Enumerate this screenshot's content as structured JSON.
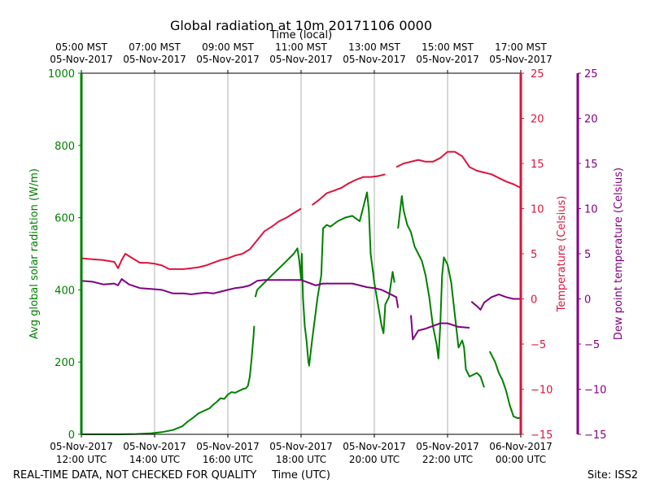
{
  "chart_data": {
    "type": "line",
    "title": "Global radiation at 10m 20171106 0000",
    "top_axis_label": "Time (local)",
    "xlabel": "Time (UTC)",
    "ylabel_left": "Avg global solar radiation (W/m)",
    "ylabel_right1": "Temperature (Celsius)",
    "ylabel_right2": "Dew point temperature (Celsius)",
    "footer_left": "REAL-TIME DATA, NOT CHECKED FOR QUALITY",
    "footer_right": "Site: ISS2",
    "xlim": [
      12,
      24
    ],
    "ylim_left": [
      0,
      1000
    ],
    "ylim_right": [
      -15,
      25
    ],
    "grid": "vertical",
    "bottom_ticks": [
      {
        "x": 12,
        "line1": "05-Nov-2017",
        "line2": "12:00 UTC"
      },
      {
        "x": 14,
        "line1": "05-Nov-2017",
        "line2": "14:00 UTC"
      },
      {
        "x": 16,
        "line1": "05-Nov-2017",
        "line2": "16:00 UTC"
      },
      {
        "x": 18,
        "line1": "05-Nov-2017",
        "line2": "18:00 UTC"
      },
      {
        "x": 20,
        "line1": "05-Nov-2017",
        "line2": "20:00 UTC"
      },
      {
        "x": 22,
        "line1": "05-Nov-2017",
        "line2": "22:00 UTC"
      },
      {
        "x": 24,
        "line1": "06-Nov-2017",
        "line2": "00:00 UTC"
      }
    ],
    "top_ticks": [
      {
        "x": 12,
        "line1": "05:00 MST",
        "line2": "05-Nov-2017"
      },
      {
        "x": 14,
        "line1": "07:00 MST",
        "line2": "05-Nov-2017"
      },
      {
        "x": 16,
        "line1": "09:00 MST",
        "line2": "05-Nov-2017"
      },
      {
        "x": 18,
        "line1": "11:00 MST",
        "line2": "05-Nov-2017"
      },
      {
        "x": 20,
        "line1": "13:00 MST",
        "line2": "05-Nov-2017"
      },
      {
        "x": 22,
        "line1": "15:00 MST",
        "line2": "05-Nov-2017"
      },
      {
        "x": 24,
        "line1": "17:00 MST",
        "line2": "05-Nov-2017"
      }
    ],
    "left_ticks": [
      0,
      200,
      400,
      600,
      800,
      1000
    ],
    "right_ticks": [
      -15,
      -10,
      -5,
      0,
      5,
      10,
      15,
      20,
      25
    ],
    "right_tick_labels": [
      "−15",
      "−10",
      "−5",
      "0",
      "5",
      "10",
      "15",
      "20",
      "25"
    ],
    "colors": {
      "radiation": "#008000",
      "temperature": "#dc143c",
      "dewpoint": "#800080",
      "axis": "#000000",
      "grid": "#b0b0b0"
    },
    "series": [
      {
        "name": "Avg global solar radiation",
        "axis": "left",
        "color": "#008000",
        "segments": [
          [
            [
              12.0,
              0
            ],
            [
              13.0,
              0
            ],
            [
              13.5,
              1
            ],
            [
              13.9,
              3
            ],
            [
              14.2,
              6
            ],
            [
              14.5,
              12
            ],
            [
              14.75,
              22
            ],
            [
              14.9,
              35
            ],
            [
              15.05,
              46
            ],
            [
              15.2,
              58
            ],
            [
              15.35,
              65
            ],
            [
              15.5,
              72
            ],
            [
              15.6,
              82
            ],
            [
              15.7,
              90
            ],
            [
              15.8,
              100
            ],
            [
              15.9,
              98
            ],
            [
              16.0,
              110
            ],
            [
              16.1,
              117
            ],
            [
              16.2,
              115
            ],
            [
              16.3,
              120
            ],
            [
              16.4,
              125
            ],
            [
              16.5,
              128
            ],
            [
              16.55,
              135
            ],
            [
              16.6,
              160
            ],
            [
              16.65,
              210
            ],
            [
              16.7,
              270
            ],
            [
              16.72,
              300
            ]
          ],
          [
            [
              16.75,
              380
            ],
            [
              16.8,
              400
            ],
            [
              17.0,
              420
            ],
            [
              17.2,
              440
            ],
            [
              17.4,
              460
            ],
            [
              17.6,
              480
            ],
            [
              17.8,
              500
            ],
            [
              17.9,
              515
            ],
            [
              17.95,
              480
            ],
            [
              18.0,
              430
            ],
            [
              18.02,
              500
            ],
            [
              18.05,
              380
            ],
            [
              18.1,
              300
            ],
            [
              18.15,
              260
            ],
            [
              18.2,
              200
            ],
            [
              18.22,
              190
            ],
            [
              18.3,
              260
            ],
            [
              18.45,
              380
            ],
            [
              18.55,
              440
            ],
            [
              18.6,
              570
            ],
            [
              18.7,
              580
            ],
            [
              18.8,
              575
            ],
            [
              19.0,
              590
            ],
            [
              19.2,
              600
            ],
            [
              19.4,
              605
            ],
            [
              19.6,
              590
            ],
            [
              19.75,
              650
            ],
            [
              19.8,
              670
            ],
            [
              19.85,
              620
            ],
            [
              19.9,
              500
            ],
            [
              20.0,
              420
            ],
            [
              20.1,
              360
            ],
            [
              20.2,
              300
            ],
            [
              20.25,
              280
            ],
            [
              20.3,
              360
            ],
            [
              20.4,
              380
            ],
            [
              20.5,
              450
            ],
            [
              20.55,
              420
            ]
          ],
          [
            [
              20.65,
              570
            ],
            [
              20.75,
              660
            ],
            [
              20.8,
              620
            ],
            [
              20.9,
              580
            ],
            [
              21.0,
              560
            ],
            [
              21.1,
              520
            ],
            [
              21.2,
              500
            ],
            [
              21.3,
              480
            ],
            [
              21.4,
              440
            ],
            [
              21.5,
              380
            ],
            [
              21.6,
              300
            ],
            [
              21.7,
              250
            ],
            [
              21.75,
              210
            ],
            [
              21.8,
              300
            ],
            [
              21.85,
              440
            ],
            [
              21.9,
              490
            ],
            [
              22.0,
              470
            ],
            [
              22.1,
              420
            ],
            [
              22.2,
              330
            ],
            [
              22.3,
              240
            ],
            [
              22.4,
              260
            ],
            [
              22.45,
              240
            ],
            [
              22.5,
              180
            ],
            [
              22.6,
              160
            ],
            [
              22.8,
              170
            ],
            [
              22.9,
              160
            ],
            [
              23.0,
              130
            ]
          ],
          [
            [
              23.15,
              230
            ],
            [
              23.3,
              200
            ],
            [
              23.4,
              170
            ],
            [
              23.5,
              150
            ],
            [
              23.6,
              120
            ],
            [
              23.7,
              80
            ],
            [
              23.8,
              50
            ],
            [
              23.9,
              45
            ],
            [
              24.0,
              45
            ]
          ]
        ]
      },
      {
        "name": "Temperature",
        "axis": "right",
        "color": "#dc143c",
        "segments": [
          [
            [
              12.0,
              4.5
            ],
            [
              12.3,
              4.4
            ],
            [
              12.6,
              4.3
            ],
            [
              12.9,
              4.1
            ],
            [
              13.0,
              3.4
            ],
            [
              13.1,
              4.3
            ],
            [
              13.2,
              5.0
            ],
            [
              13.4,
              4.5
            ],
            [
              13.6,
              4.0
            ],
            [
              13.8,
              4.0
            ],
            [
              14.0,
              3.9
            ],
            [
              14.2,
              3.7
            ],
            [
              14.4,
              3.3
            ],
            [
              14.6,
              3.3
            ],
            [
              14.8,
              3.3
            ],
            [
              15.0,
              3.4
            ],
            [
              15.2,
              3.5
            ],
            [
              15.4,
              3.7
            ],
            [
              15.6,
              4.0
            ],
            [
              15.8,
              4.3
            ],
            [
              16.0,
              4.5
            ],
            [
              16.2,
              4.8
            ],
            [
              16.4,
              5.0
            ],
            [
              16.6,
              5.5
            ],
            [
              16.8,
              6.5
            ],
            [
              17.0,
              7.5
            ],
            [
              17.2,
              8.0
            ],
            [
              17.4,
              8.6
            ],
            [
              17.6,
              9.0
            ],
            [
              17.8,
              9.5
            ],
            [
              18.0,
              10.0
            ]
          ],
          [
            [
              18.3,
              10.4
            ],
            [
              18.5,
              11.0
            ],
            [
              18.7,
              11.7
            ],
            [
              18.9,
              12.0
            ],
            [
              19.1,
              12.3
            ],
            [
              19.3,
              12.8
            ],
            [
              19.5,
              13.2
            ],
            [
              19.7,
              13.5
            ],
            [
              19.9,
              13.5
            ],
            [
              20.1,
              13.6
            ],
            [
              20.3,
              13.8
            ]
          ],
          [
            [
              20.6,
              14.6
            ],
            [
              20.8,
              15.0
            ],
            [
              21.0,
              15.2
            ],
            [
              21.2,
              15.4
            ],
            [
              21.4,
              15.2
            ],
            [
              21.6,
              15.2
            ],
            [
              21.8,
              15.6
            ],
            [
              22.0,
              16.3
            ],
            [
              22.2,
              16.3
            ],
            [
              22.4,
              15.8
            ],
            [
              22.6,
              14.6
            ],
            [
              22.8,
              14.2
            ],
            [
              23.0,
              14.0
            ],
            [
              23.2,
              13.8
            ],
            [
              23.4,
              13.4
            ],
            [
              23.6,
              13.0
            ],
            [
              23.8,
              12.7
            ],
            [
              24.0,
              12.3
            ]
          ]
        ]
      },
      {
        "name": "Dew point temperature",
        "axis": "right",
        "color": "#800080",
        "segments": [
          [
            [
              12.0,
              2.0
            ],
            [
              12.3,
              1.9
            ],
            [
              12.6,
              1.6
            ],
            [
              12.9,
              1.7
            ],
            [
              13.0,
              1.5
            ],
            [
              13.1,
              2.2
            ],
            [
              13.3,
              1.6
            ],
            [
              13.6,
              1.2
            ],
            [
              13.9,
              1.1
            ],
            [
              14.2,
              1.0
            ],
            [
              14.5,
              0.6
            ],
            [
              14.8,
              0.6
            ],
            [
              15.0,
              0.5
            ],
            [
              15.2,
              0.6
            ],
            [
              15.4,
              0.7
            ],
            [
              15.6,
              0.6
            ],
            [
              15.8,
              0.8
            ],
            [
              16.0,
              1.0
            ],
            [
              16.2,
              1.2
            ],
            [
              16.4,
              1.3
            ],
            [
              16.6,
              1.5
            ],
            [
              16.8,
              2.0
            ],
            [
              17.0,
              2.1
            ],
            [
              17.2,
              2.1
            ],
            [
              17.4,
              2.1
            ],
            [
              17.6,
              2.1
            ],
            [
              17.8,
              2.1
            ],
            [
              18.0,
              2.1
            ],
            [
              18.2,
              1.8
            ],
            [
              18.4,
              1.5
            ],
            [
              18.6,
              1.7
            ],
            [
              18.8,
              1.7
            ],
            [
              19.0,
              1.7
            ],
            [
              19.2,
              1.7
            ],
            [
              19.4,
              1.7
            ],
            [
              19.6,
              1.5
            ],
            [
              19.8,
              1.3
            ],
            [
              20.0,
              1.2
            ],
            [
              20.2,
              1.0
            ],
            [
              20.4,
              0.6
            ],
            [
              20.6,
              0.2
            ],
            [
              20.65,
              -1.0
            ]
          ],
          [
            [
              21.0,
              -1.8
            ],
            [
              21.05,
              -4.5
            ],
            [
              21.2,
              -3.5
            ],
            [
              21.4,
              -3.3
            ],
            [
              21.6,
              -3.0
            ],
            [
              21.8,
              -2.7
            ],
            [
              22.0,
              -2.7
            ],
            [
              22.3,
              -3.1
            ],
            [
              22.6,
              -3.2
            ]
          ],
          [
            [
              22.65,
              -0.3
            ],
            [
              22.8,
              -0.8
            ],
            [
              22.9,
              -1.2
            ],
            [
              23.0,
              -0.4
            ],
            [
              23.2,
              0.2
            ],
            [
              23.4,
              0.5
            ],
            [
              23.6,
              0.2
            ],
            [
              23.8,
              0.0
            ],
            [
              24.0,
              0.0
            ]
          ]
        ]
      }
    ]
  }
}
